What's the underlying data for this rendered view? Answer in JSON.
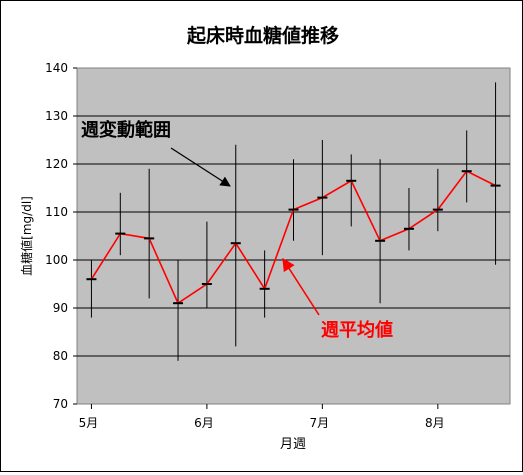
{
  "chart_data": {
    "type": "line",
    "title": "起床時血糖値推移",
    "xlabel": "月週",
    "ylabel": "血糖値[mg/dl]",
    "ylim": [
      70,
      140
    ],
    "yticks": [
      70,
      80,
      90,
      100,
      110,
      120,
      130,
      140
    ],
    "grid": true,
    "x_tick_labels": [
      {
        "label": "5月",
        "week": 1
      },
      {
        "label": "6月",
        "week": 5
      },
      {
        "label": "7月",
        "week": 9
      },
      {
        "label": "8月",
        "week": 13
      }
    ],
    "series": [
      {
        "name": "週平均値",
        "color": "#ff0000",
        "x": [
          1,
          2,
          3,
          4,
          5,
          6,
          7,
          8,
          9,
          10,
          11,
          12,
          13,
          14,
          15
        ],
        "mean": [
          96,
          105.5,
          104.5,
          91,
          95,
          103.5,
          94,
          110.5,
          113,
          116.5,
          104,
          106.5,
          110.5,
          118.5,
          115.5
        ],
        "min": [
          88,
          101,
          92,
          79,
          90,
          82,
          88,
          104,
          101,
          107,
          91,
          102,
          106,
          112,
          99
        ],
        "max": [
          100,
          114,
          119,
          100,
          108,
          124,
          102,
          121,
          125,
          122,
          121,
          115,
          119,
          127,
          137
        ]
      }
    ],
    "annotations": {
      "range_label": "週変動範囲",
      "mean_label": "週平均値"
    }
  }
}
